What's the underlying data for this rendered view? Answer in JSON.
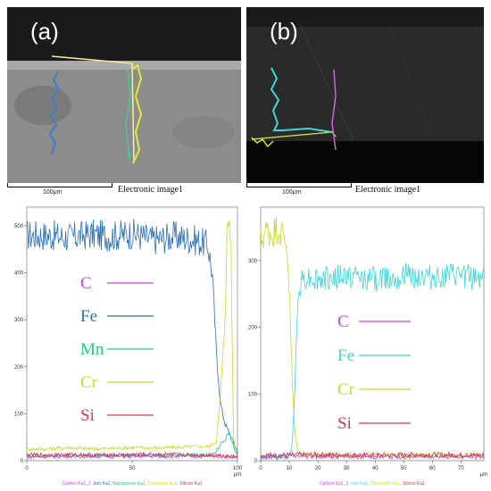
{
  "panels": {
    "a": {
      "letter": "(a)",
      "scale_label": "100μm",
      "caption": "Electronic image1"
    },
    "b": {
      "letter": "(b)",
      "scale_label": "100μm",
      "caption": "Electronic image1"
    }
  },
  "colors": {
    "C": "#cc44dd",
    "Fe": "#2a6fb8",
    "Mn": "#22cc88",
    "Cr": "#c8d82a",
    "Si": "#d23a4a",
    "Fe_b": "#3dd6d6",
    "sem_coating": "#1a1a1a",
    "sem_substrate_a": "#8a8a8a",
    "sem_substrate_b": "#2c2c2c"
  },
  "chart_data": [
    {
      "type": "line",
      "id": "a",
      "xlabel": "μm",
      "ylabel": "",
      "xlim": [
        0,
        100
      ],
      "ylim": [
        0,
        540
      ],
      "xticks": [
        0,
        50,
        100
      ],
      "yticks": [
        0,
        100,
        200,
        300,
        400,
        500
      ],
      "legend": [
        {
          "symbol": "C",
          "key": "C"
        },
        {
          "symbol": "Fe",
          "key": "Fe"
        },
        {
          "symbol": "Mn",
          "key": "Mn"
        },
        {
          "symbol": "Cr",
          "key": "Cr"
        },
        {
          "symbol": "Si",
          "key": "Si"
        }
      ],
      "footer": [
        {
          "text": "Carbon Ka1_2, ",
          "key": "C"
        },
        {
          "text": "Iron Ka1, ",
          "key": "Fe"
        },
        {
          "text": "Manganese Ka1, ",
          "key": "Mn"
        },
        {
          "text": "Chromium Ka1, ",
          "key": "Cr"
        },
        {
          "text": "Silicon Ka1",
          "key": "Si"
        }
      ],
      "series": [
        {
          "key": "Fe",
          "x": [
            0,
            10,
            20,
            30,
            40,
            50,
            60,
            70,
            80,
            86,
            88,
            90,
            92,
            94,
            96,
            98,
            100
          ],
          "y": [
            480,
            480,
            475,
            482,
            478,
            484,
            470,
            478,
            470,
            460,
            400,
            230,
            120,
            80,
            60,
            40,
            20
          ]
        },
        {
          "key": "Cr",
          "x": [
            0,
            10,
            20,
            30,
            40,
            50,
            60,
            70,
            80,
            86,
            90,
            92,
            94,
            95,
            96,
            97,
            98,
            99,
            100
          ],
          "y": [
            25,
            25,
            28,
            25,
            26,
            28,
            27,
            28,
            30,
            30,
            40,
            140,
            300,
            470,
            520,
            460,
            60,
            20,
            10
          ]
        },
        {
          "key": "Mn",
          "x": [
            0,
            20,
            40,
            60,
            80,
            88,
            90,
            92,
            94,
            96,
            98,
            100
          ],
          "y": [
            10,
            10,
            12,
            10,
            12,
            12,
            20,
            35,
            45,
            60,
            30,
            10
          ]
        },
        {
          "key": "C",
          "x": [
            0,
            20,
            40,
            60,
            80,
            90,
            95,
            100
          ],
          "y": [
            8,
            10,
            9,
            10,
            9,
            10,
            9,
            8
          ]
        },
        {
          "key": "Si",
          "x": [
            0,
            20,
            40,
            60,
            80,
            90,
            95,
            100
          ],
          "y": [
            12,
            13,
            12,
            14,
            12,
            12,
            10,
            8
          ]
        }
      ]
    },
    {
      "type": "line",
      "id": "b",
      "xlabel": "μm",
      "ylabel": "",
      "xlim": [
        0,
        78
      ],
      "ylim": [
        0,
        380
      ],
      "xticks": [
        0,
        10,
        20,
        30,
        40,
        50,
        60,
        70
      ],
      "yticks": [
        0,
        100,
        200,
        300
      ],
      "legend": [
        {
          "symbol": "C",
          "key": "C"
        },
        {
          "symbol": "Fe",
          "key": "Fe_b"
        },
        {
          "symbol": "Cr",
          "key": "Cr"
        },
        {
          "symbol": "Si",
          "key": "Si"
        }
      ],
      "footer": [
        {
          "text": "Carbon Ka1_2, ",
          "key": "C"
        },
        {
          "text": "Iron Ka1, ",
          "key": "Fe_b"
        },
        {
          "text": "Chromium Ka1, ",
          "key": "Cr"
        },
        {
          "text": "Silicon Ka1",
          "key": "Si"
        }
      ],
      "series": [
        {
          "key": "Cr",
          "x": [
            0,
            2,
            4,
            6,
            8,
            9,
            10,
            11,
            12,
            13,
            14,
            20,
            40,
            60,
            78
          ],
          "y": [
            330,
            345,
            340,
            350,
            335,
            330,
            260,
            120,
            40,
            15,
            10,
            8,
            8,
            8,
            8
          ]
        },
        {
          "key": "Fe_b",
          "x": [
            0,
            8,
            10,
            11,
            12,
            13,
            14,
            16,
            20,
            30,
            40,
            50,
            60,
            70,
            78
          ],
          "y": [
            5,
            5,
            6,
            20,
            120,
            240,
            270,
            275,
            270,
            276,
            272,
            278,
            274,
            276,
            275
          ]
        },
        {
          "key": "C",
          "x": [
            0,
            20,
            40,
            60,
            78
          ],
          "y": [
            6,
            7,
            6,
            7,
            6
          ]
        },
        {
          "key": "Si",
          "x": [
            0,
            20,
            40,
            60,
            78
          ],
          "y": [
            8,
            9,
            8,
            9,
            8
          ]
        }
      ]
    }
  ]
}
